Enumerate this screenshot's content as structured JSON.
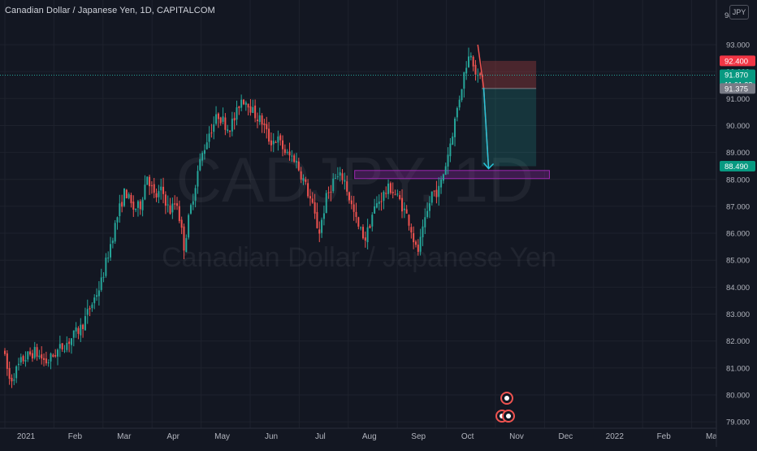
{
  "header": {
    "title": "Canadian Dollar / Japanese Yen, 1D, CAPITALCOM"
  },
  "currency_button": "JPY",
  "watermark": {
    "symbol": "CADJPY, 1D",
    "name": "Canadian Dollar / Japanese Yen"
  },
  "colors": {
    "background": "#131722",
    "up": "#26a69a",
    "down": "#ef5350",
    "zone": "#9c27b0",
    "axis_text": "#b2b5be"
  },
  "chart_data": {
    "type": "candlestick",
    "title": "Canadian Dollar / Japanese Yen, 1D, CAPITALCOM",
    "ylim": [
      78.8,
      94.5
    ],
    "y_ticks": [
      79,
      80,
      81,
      82,
      83,
      84,
      85,
      86,
      87,
      88,
      89,
      90,
      91,
      92,
      93
    ],
    "y_tick_labels": [
      "79.000",
      "80.000",
      "81.000",
      "82.000",
      "83.000",
      "84.000",
      "85.000",
      "86.000",
      "87.000",
      "88.000",
      "89.000",
      "90.000",
      "91.000",
      "92.000",
      "93.000"
    ],
    "y_top_partial_label": "94",
    "x_ticks": [
      {
        "label": "2021",
        "month": 0
      },
      {
        "label": "Feb",
        "month": 1
      },
      {
        "label": "Mar",
        "month": 2
      },
      {
        "label": "Apr",
        "month": 3
      },
      {
        "label": "May",
        "month": 4
      },
      {
        "label": "Jun",
        "month": 5
      },
      {
        "label": "Jul",
        "month": 6
      },
      {
        "label": "Aug",
        "month": 7
      },
      {
        "label": "Sep",
        "month": 8
      },
      {
        "label": "Oct",
        "month": 9
      },
      {
        "label": "Nov",
        "month": 10
      },
      {
        "label": "Dec",
        "month": 11
      },
      {
        "label": "2022",
        "month": 12
      },
      {
        "label": "Feb",
        "month": 13
      },
      {
        "label": "Mar",
        "month": 14
      }
    ],
    "price_path": [
      [
        0,
        81.7
      ],
      [
        0.15,
        80.5
      ],
      [
        0.4,
        81.3
      ],
      [
        0.65,
        81.6
      ],
      [
        0.9,
        81.2
      ],
      [
        1.1,
        81.6
      ],
      [
        1.35,
        82.0
      ],
      [
        1.6,
        82.5
      ],
      [
        1.8,
        83.3
      ],
      [
        2.0,
        84.1
      ],
      [
        2.2,
        85.6
      ],
      [
        2.35,
        86.7
      ],
      [
        2.5,
        87.6
      ],
      [
        2.65,
        86.9
      ],
      [
        2.8,
        87.0
      ],
      [
        2.95,
        88.2
      ],
      [
        3.1,
        87.3
      ],
      [
        3.25,
        87.6
      ],
      [
        3.4,
        86.8
      ],
      [
        3.55,
        87.2
      ],
      [
        3.7,
        85.5
      ],
      [
        3.8,
        86.6
      ],
      [
        4.0,
        88.5
      ],
      [
        4.2,
        89.7
      ],
      [
        4.4,
        90.4
      ],
      [
        4.6,
        89.9
      ],
      [
        4.75,
        90.3
      ],
      [
        4.85,
        91.0
      ],
      [
        5.0,
        90.9
      ],
      [
        5.1,
        90.5
      ],
      [
        5.3,
        90.1
      ],
      [
        5.45,
        89.4
      ],
      [
        5.6,
        89.5
      ],
      [
        5.8,
        88.9
      ],
      [
        5.95,
        88.8
      ],
      [
        6.15,
        87.9
      ],
      [
        6.3,
        87.1
      ],
      [
        6.45,
        86.0
      ],
      [
        6.6,
        87.3
      ],
      [
        6.75,
        88.0
      ],
      [
        6.95,
        88.1
      ],
      [
        7.1,
        87.1
      ],
      [
        7.25,
        86.2
      ],
      [
        7.4,
        85.8
      ],
      [
        7.55,
        86.8
      ],
      [
        7.7,
        87.3
      ],
      [
        7.9,
        87.7
      ],
      [
        8.1,
        87.2
      ],
      [
        8.3,
        86.4
      ],
      [
        8.45,
        85.2
      ],
      [
        8.6,
        86.3
      ],
      [
        8.75,
        87.5
      ],
      [
        8.9,
        87.6
      ],
      [
        9.05,
        88.7
      ],
      [
        9.2,
        90.0
      ],
      [
        9.35,
        91.4
      ],
      [
        9.45,
        92.3
      ],
      [
        9.55,
        92.75
      ],
      [
        9.62,
        92.2
      ],
      [
        9.7,
        91.6
      ],
      [
        9.76,
        91.9
      ]
    ],
    "annotations": {
      "current_price": 91.87,
      "countdown": "11:01:38",
      "stop_loss": 92.4,
      "entry": 91.375,
      "take_profit": 88.49,
      "short_position": {
        "start_month": 9.72,
        "end_month": 10.83
      },
      "support_zone": {
        "low": 88.03,
        "high": 88.33,
        "start_month": 7.13,
        "end_month": 11.1
      },
      "projection": [
        [
          9.64,
          93.0
        ],
        [
          9.76,
          91.4
        ],
        [
          9.86,
          88.4
        ]
      ]
    },
    "price_labels": {
      "stop_loss": "92.400",
      "current": "91.870",
      "entry": "91.375",
      "take_profit": "88.490"
    }
  }
}
